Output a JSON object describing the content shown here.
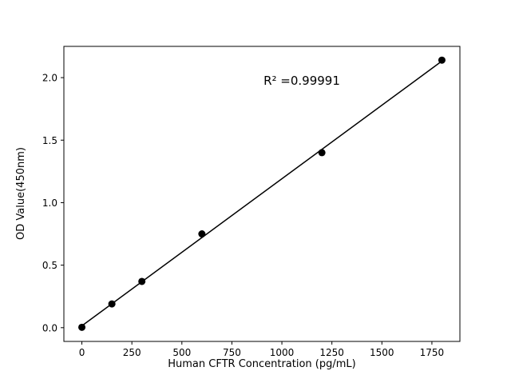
{
  "figure": {
    "background": "#ffffff"
  },
  "chart_data": {
    "type": "scatter",
    "title": "",
    "xlabel": "Human CFTR Concentration (pg/mL)",
    "ylabel": "OD Value(450nm)",
    "annotation": "R² =0.99991",
    "points": {
      "x": [
        0,
        150,
        300,
        600,
        1200,
        1800
      ],
      "y": [
        0.003,
        0.19,
        0.37,
        0.75,
        1.4,
        2.14
      ]
    },
    "fit_line": {
      "type": "linear_regression_through_points",
      "x_range": [
        0,
        1800
      ]
    },
    "xlim": [
      -90,
      1890
    ],
    "ylim": [
      -0.11,
      2.25
    ],
    "xticks": [
      0,
      250,
      500,
      750,
      1000,
      1250,
      1500,
      1750
    ],
    "yticks": [
      0.0,
      0.5,
      1.0,
      1.5,
      2.0
    ],
    "ytick_labels": [
      "0.0",
      "0.5",
      "1.0",
      "1.5",
      "2.0"
    ],
    "annotation_pos": {
      "x": 1100,
      "y": 1.95
    },
    "marker_color": "#000000",
    "line_color": "#000000",
    "grid": false,
    "legend": null
  }
}
